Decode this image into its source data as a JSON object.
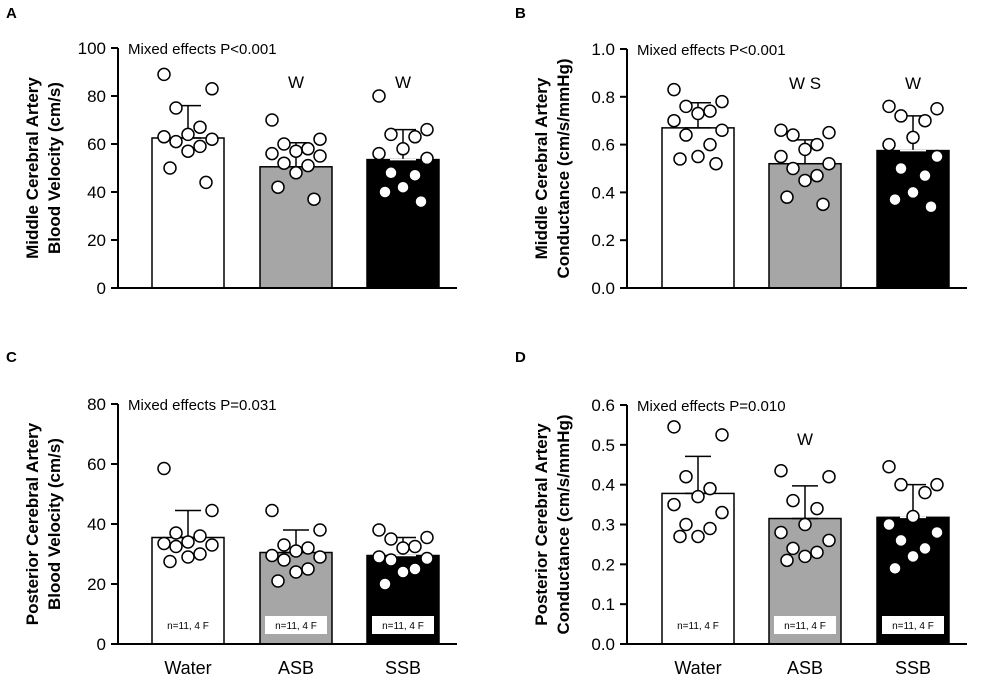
{
  "colors": {
    "water": "#ffffff",
    "asb": "#a6a6a6",
    "ssb": "#000000",
    "stroke": "#000000"
  },
  "chart_data": [
    {
      "panel": "A",
      "type": "bar",
      "ylabel_line1": "Middle Cerebral Artery",
      "ylabel_line2": "Blood Velocity (cm/s)",
      "categories": [
        "Water",
        "ASB",
        "SSB"
      ],
      "show_categories": false,
      "ylim": [
        0,
        100
      ],
      "yticks": [
        0,
        20,
        40,
        60,
        80,
        100
      ],
      "tick_labels": [
        "0",
        "20",
        "40",
        "60",
        "80",
        "100"
      ],
      "annotation": "Mixed effects P<0.001",
      "means": [
        62.5,
        50.5,
        53.5
      ],
      "sd": [
        13.5,
        10,
        12.5
      ],
      "significance": [
        "",
        "W",
        "W"
      ],
      "n_labels": [
        "",
        "",
        ""
      ],
      "points": [
        [
          89,
          83,
          75,
          67,
          64,
          63,
          62,
          61,
          59,
          57,
          50,
          44
        ],
        [
          70,
          62,
          60,
          58,
          57,
          56,
          55,
          52,
          51,
          48,
          42,
          37
        ],
        [
          80,
          66,
          64,
          63,
          58,
          56,
          54,
          48,
          47,
          42,
          40,
          36
        ]
      ]
    },
    {
      "panel": "B",
      "type": "bar",
      "ylabel_line1": "Middle Cerebral Artery",
      "ylabel_line2": "Conductance (cm/s/mmHg)",
      "categories": [
        "Water",
        "ASB",
        "SSB"
      ],
      "show_categories": false,
      "ylim": [
        0,
        1.0
      ],
      "yticks": [
        0,
        0.2,
        0.4,
        0.6,
        0.8,
        1.0
      ],
      "tick_labels": [
        "0.0",
        "0.2",
        "0.4",
        "0.6",
        "0.8",
        "1.0"
      ],
      "annotation": "Mixed effects P<0.001",
      "means": [
        0.67,
        0.52,
        0.575
      ],
      "sd": [
        0.105,
        0.1,
        0.145
      ],
      "significance": [
        "",
        "W S",
        "W"
      ],
      "n_labels": [
        "",
        "",
        ""
      ],
      "points": [
        [
          0.83,
          0.78,
          0.76,
          0.74,
          0.73,
          0.7,
          0.66,
          0.64,
          0.6,
          0.55,
          0.54,
          0.52
        ],
        [
          0.66,
          0.65,
          0.64,
          0.6,
          0.58,
          0.55,
          0.52,
          0.5,
          0.47,
          0.45,
          0.38,
          0.35
        ],
        [
          0.76,
          0.75,
          0.72,
          0.7,
          0.63,
          0.6,
          0.55,
          0.5,
          0.47,
          0.4,
          0.37,
          0.34
        ]
      ]
    },
    {
      "panel": "C",
      "type": "bar",
      "ylabel_line1": "Posterior Cerebral Artery",
      "ylabel_line2": "Blood Velocity (cm/s)",
      "categories": [
        "Water",
        "ASB",
        "SSB"
      ],
      "show_categories": true,
      "ylim": [
        0,
        80
      ],
      "yticks": [
        0,
        20,
        40,
        60,
        80
      ],
      "tick_labels": [
        "0",
        "20",
        "40",
        "60",
        "80"
      ],
      "annotation": "Mixed effects P=0.031",
      "means": [
        35.5,
        30.5,
        29.5
      ],
      "sd": [
        9,
        7.5,
        6
      ],
      "significance": [
        "",
        "",
        ""
      ],
      "n_labels": [
        "n=11, 4 F",
        "n=11, 4 F",
        "n=11, 4 F"
      ],
      "points": [
        [
          58.5,
          44.5,
          37,
          36,
          34,
          33.5,
          33,
          32.5,
          30,
          29,
          27.5
        ],
        [
          44.5,
          38,
          33,
          32,
          31,
          29.5,
          29,
          28,
          25,
          24,
          21
        ],
        [
          38,
          35.5,
          35,
          32.5,
          32,
          29,
          28.5,
          28,
          25,
          24,
          20
        ]
      ]
    },
    {
      "panel": "D",
      "type": "bar",
      "ylabel_line1": "Posterior Cerebral Artery",
      "ylabel_line2": "Conductance (cm/s/mmHg)",
      "categories": [
        "Water",
        "ASB",
        "SSB"
      ],
      "show_categories": true,
      "ylim": [
        0,
        0.6
      ],
      "yticks": [
        0,
        0.1,
        0.2,
        0.3,
        0.4,
        0.5,
        0.6
      ],
      "tick_labels": [
        "0.0",
        "0.1",
        "0.2",
        "0.3",
        "0.4",
        "0.5",
        "0.6"
      ],
      "annotation": "Mixed effects P=0.010",
      "means": [
        0.378,
        0.315,
        0.318
      ],
      "sd": [
        0.093,
        0.082,
        0.082
      ],
      "significance": [
        "",
        "W",
        ""
      ],
      "n_labels": [
        "n=11, 4 F",
        "n=11, 4 F",
        "n=11, 4 F"
      ],
      "points": [
        [
          0.545,
          0.525,
          0.42,
          0.39,
          0.37,
          0.35,
          0.33,
          0.3,
          0.29,
          0.27,
          0.27
        ],
        [
          0.435,
          0.42,
          0.36,
          0.34,
          0.3,
          0.28,
          0.26,
          0.24,
          0.23,
          0.22,
          0.21
        ],
        [
          0.445,
          0.4,
          0.4,
          0.38,
          0.32,
          0.3,
          0.28,
          0.26,
          0.24,
          0.22,
          0.19
        ]
      ]
    }
  ]
}
